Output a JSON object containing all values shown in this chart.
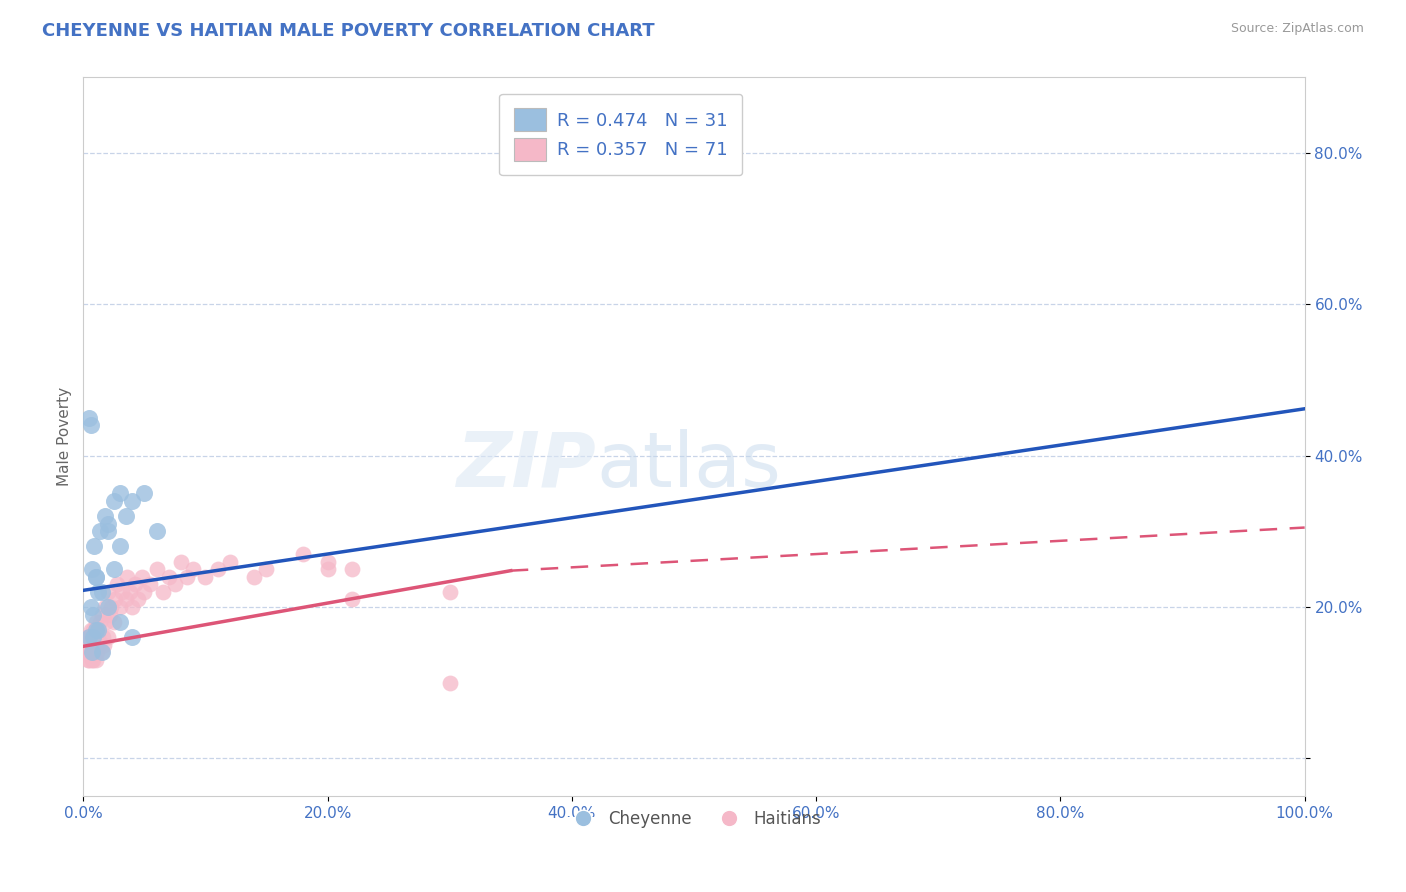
{
  "title": "CHEYENNE VS HAITIAN MALE POVERTY CORRELATION CHART",
  "source": "Source: ZipAtlas.com",
  "ylabel": "Male Poverty",
  "xlim": [
    0.0,
    1.0
  ],
  "ylim": [
    -0.05,
    0.9
  ],
  "xticks": [
    0.0,
    0.2,
    0.4,
    0.6,
    0.8,
    1.0
  ],
  "xticklabels": [
    "0.0%",
    "20.0%",
    "40.0%",
    "60.0%",
    "80.0%",
    "100.0%"
  ],
  "ytick_positions": [
    0.0,
    0.2,
    0.4,
    0.6,
    0.8
  ],
  "ytick_labels": [
    "",
    "20.0%",
    "40.0%",
    "60.0%",
    "80.0%"
  ],
  "background_color": "#ffffff",
  "plot_bg_color": "#ffffff",
  "grid_color": "#c8d4e8",
  "cheyenne_color": "#9bbfdf",
  "haitian_color": "#f5b8c8",
  "cheyenne_line_color": "#2255bb",
  "haitian_line_color": "#dd5577",
  "R_cheyenne": 0.474,
  "N_cheyenne": 31,
  "R_haitian": 0.357,
  "N_haitian": 71,
  "legend_label_cheyenne": "Cheyenne",
  "legend_label_haitian": "Haitians",
  "cheyenne_line_x0": 0.0,
  "cheyenne_line_y0": 0.222,
  "cheyenne_line_x1": 1.0,
  "cheyenne_line_y1": 0.462,
  "haitian_line_x0": 0.0,
  "haitian_line_y0": 0.148,
  "haitian_line_x1_solid": 0.35,
  "haitian_line_y1_solid": 0.248,
  "haitian_line_x1_dash": 1.0,
  "haitian_line_y1_dash": 0.305,
  "cheyenne_x": [
    0.005,
    0.006,
    0.007,
    0.007,
    0.008,
    0.009,
    0.01,
    0.01,
    0.012,
    0.014,
    0.015,
    0.018,
    0.02,
    0.025,
    0.03,
    0.035,
    0.04,
    0.05,
    0.06,
    0.03,
    0.025,
    0.02,
    0.015,
    0.01,
    0.005,
    0.006,
    0.008,
    0.012,
    0.02,
    0.03,
    0.04
  ],
  "cheyenne_y": [
    0.16,
    0.2,
    0.25,
    0.14,
    0.19,
    0.28,
    0.24,
    0.17,
    0.22,
    0.3,
    0.14,
    0.32,
    0.31,
    0.34,
    0.35,
    0.32,
    0.34,
    0.35,
    0.3,
    0.28,
    0.25,
    0.3,
    0.22,
    0.24,
    0.45,
    0.44,
    0.16,
    0.17,
    0.2,
    0.18,
    0.16
  ],
  "haitian_x": [
    0.002,
    0.003,
    0.003,
    0.004,
    0.004,
    0.005,
    0.005,
    0.005,
    0.006,
    0.006,
    0.006,
    0.007,
    0.007,
    0.007,
    0.008,
    0.008,
    0.008,
    0.009,
    0.009,
    0.01,
    0.01,
    0.01,
    0.011,
    0.011,
    0.012,
    0.012,
    0.013,
    0.014,
    0.015,
    0.015,
    0.016,
    0.017,
    0.018,
    0.019,
    0.02,
    0.02,
    0.022,
    0.023,
    0.025,
    0.026,
    0.028,
    0.03,
    0.032,
    0.035,
    0.036,
    0.038,
    0.04,
    0.042,
    0.045,
    0.048,
    0.05,
    0.055,
    0.06,
    0.065,
    0.07,
    0.075,
    0.08,
    0.085,
    0.09,
    0.1,
    0.11,
    0.12,
    0.14,
    0.15,
    0.18,
    0.2,
    0.22,
    0.3,
    0.3,
    0.22,
    0.2
  ],
  "haitian_y": [
    0.15,
    0.16,
    0.14,
    0.13,
    0.15,
    0.14,
    0.16,
    0.13,
    0.15,
    0.17,
    0.14,
    0.16,
    0.13,
    0.15,
    0.14,
    0.17,
    0.13,
    0.16,
    0.14,
    0.15,
    0.13,
    0.18,
    0.15,
    0.14,
    0.17,
    0.16,
    0.15,
    0.18,
    0.14,
    0.19,
    0.16,
    0.15,
    0.2,
    0.18,
    0.16,
    0.22,
    0.19,
    0.2,
    0.18,
    0.21,
    0.23,
    0.2,
    0.22,
    0.21,
    0.24,
    0.22,
    0.2,
    0.23,
    0.21,
    0.24,
    0.22,
    0.23,
    0.25,
    0.22,
    0.24,
    0.23,
    0.26,
    0.24,
    0.25,
    0.24,
    0.25,
    0.26,
    0.24,
    0.25,
    0.27,
    0.26,
    0.25,
    0.1,
    0.22,
    0.21,
    0.25
  ]
}
